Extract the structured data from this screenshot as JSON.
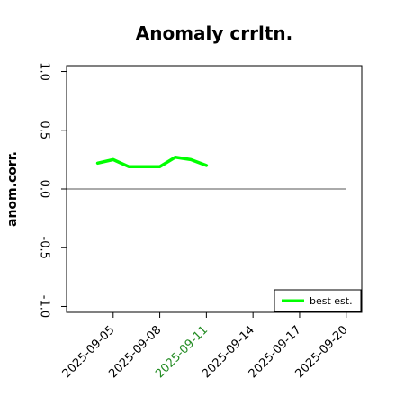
{
  "chart_data": {
    "type": "line",
    "title": "Anomaly crrltn.",
    "xlabel": "",
    "ylabel": "anom.corr.",
    "x": [
      "2025-09-04",
      "2025-09-05",
      "2025-09-06",
      "2025-09-07",
      "2025-09-08",
      "2025-09-09",
      "2025-09-10",
      "2025-09-11"
    ],
    "series": [
      {
        "name": "best est.",
        "color": "#00ff00",
        "values": [
          0.22,
          0.25,
          0.19,
          0.19,
          0.19,
          0.27,
          0.25,
          0.2
        ]
      }
    ],
    "reference_line": {
      "y": 0.0,
      "x_from": "2025-09-02",
      "x_to": "2025-09-20",
      "color": "#555555"
    },
    "xticks": [
      "2025-09-05",
      "2025-09-08",
      "2025-09-11",
      "2025-09-14",
      "2025-09-17",
      "2025-09-20"
    ],
    "xtick_colors": [
      "#000000",
      "#000000",
      "#228b22",
      "#000000",
      "#000000",
      "#000000"
    ],
    "yticks": [
      "-1.0",
      "-0.5",
      "0.0",
      "0.5",
      "1.0"
    ],
    "xlim": [
      "2025-09-02",
      "2025-09-21"
    ],
    "ylim": [
      -1.05,
      1.05
    ],
    "legend_position": "bottom-right",
    "grid": false
  }
}
